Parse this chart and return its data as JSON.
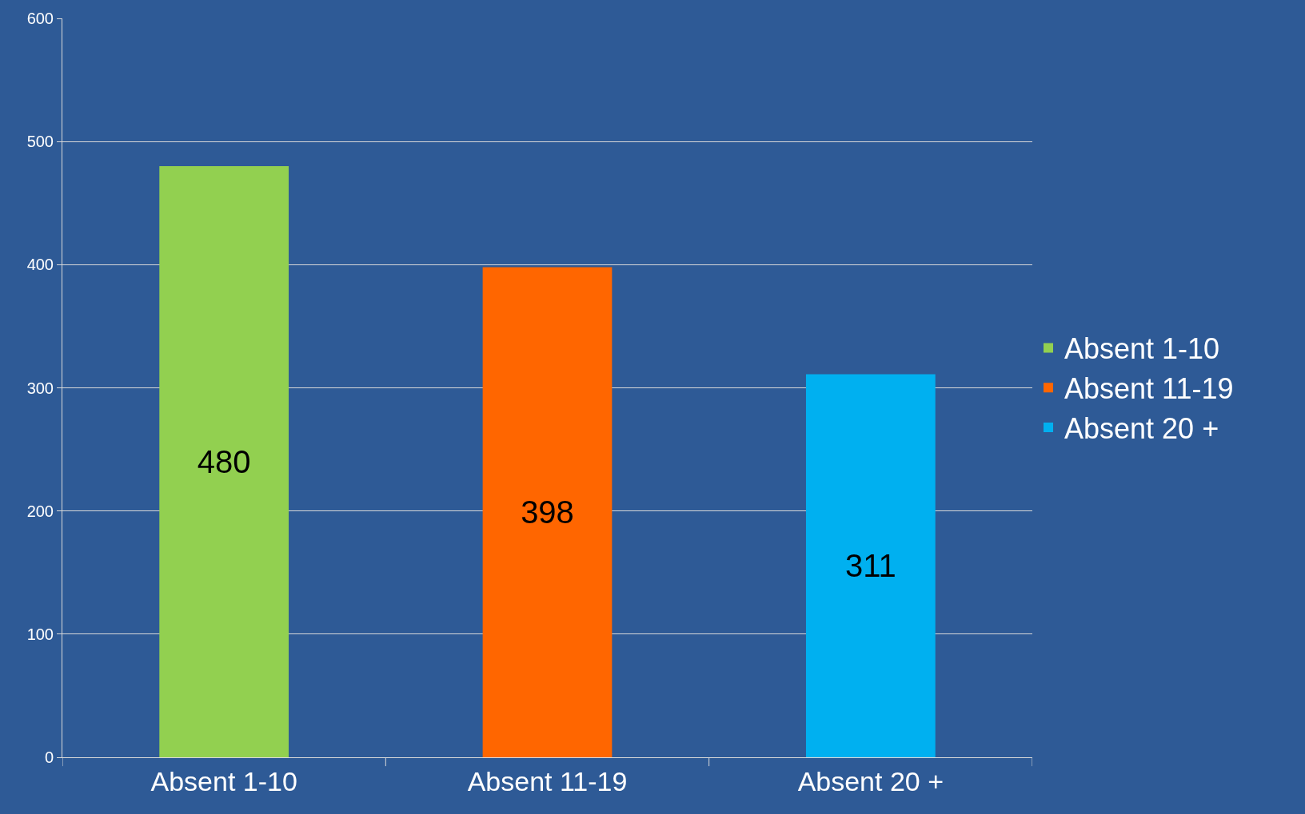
{
  "chart_data": {
    "type": "bar",
    "categories": [
      "Absent 1-10",
      "Absent 11-19",
      "Absent 20 +"
    ],
    "series": [
      {
        "name": "Absent 1-10",
        "color": "#92d050",
        "values": [
          480,
          null,
          null
        ]
      },
      {
        "name": "Absent 11-19",
        "color": "#ff6600",
        "values": [
          null,
          398,
          null
        ]
      },
      {
        "name": "Absent 20 +",
        "color": "#00b0f0",
        "values": [
          null,
          null,
          311
        ]
      }
    ],
    "ylim": [
      0,
      600
    ],
    "yticks": [
      0,
      100,
      200,
      300,
      400,
      500,
      600
    ],
    "grid": "y",
    "legend": "right",
    "data_labels": true
  }
}
